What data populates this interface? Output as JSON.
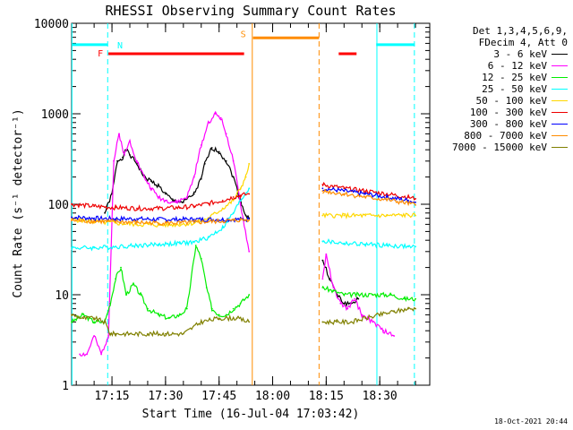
{
  "chart_data": {
    "type": "line",
    "title": "RHESSI Observing Summary Count Rates",
    "xlabel": "Start Time (16-Jul-04 17:03:42)",
    "ylabel": "Count Rate (s⁻¹ detector⁻¹)",
    "yscale": "log",
    "ylim": [
      1,
      10000
    ],
    "xlim_minutes": [
      1023.7,
      1124
    ],
    "x_unit": "minutes since 00:00 UT",
    "x_ticks": [
      {
        "v": 1035,
        "label": "17:15"
      },
      {
        "v": 1050,
        "label": "17:30"
      },
      {
        "v": 1065,
        "label": "17:45"
      },
      {
        "v": 1080,
        "label": "18:00"
      },
      {
        "v": 1095,
        "label": "18:15"
      },
      {
        "v": 1110,
        "label": "18:30"
      }
    ],
    "y_ticks": [
      {
        "v": 1,
        "label": "1"
      },
      {
        "v": 10,
        "label": "10"
      },
      {
        "v": 100,
        "label": "100"
      },
      {
        "v": 1000,
        "label": "1000"
      },
      {
        "v": 10000,
        "label": "10000"
      }
    ],
    "gaps": [
      [
        1073.6,
        1094
      ]
    ],
    "series": [
      {
        "name": "3 - 6 keV",
        "color": "#000000",
        "x": [
          1033,
          1035,
          1036.5,
          1038,
          1039,
          1040,
          1042,
          1044,
          1046,
          1048,
          1050,
          1052,
          1055,
          1058,
          1060,
          1061,
          1063,
          1065,
          1067,
          1069,
          1071,
          1072.5,
          1073.4,
          1094,
          1096,
          1098,
          1100,
          1102,
          1104
        ],
        "y": [
          80,
          130,
          300,
          330,
          400,
          350,
          280,
          200,
          180,
          160,
          130,
          110,
          105,
          130,
          190,
          280,
          420,
          380,
          300,
          200,
          110,
          75,
          70,
          24,
          15,
          10,
          8,
          8,
          9
        ]
      },
      {
        "name": "6 - 12 keV",
        "color": "#ff00ff",
        "x": [
          1026,
          1028,
          1030,
          1032,
          1034,
          1035.5,
          1037,
          1038.5,
          1040,
          1042,
          1044,
          1046,
          1048,
          1050,
          1053,
          1056,
          1058,
          1060,
          1062,
          1064,
          1065.5,
          1067,
          1069,
          1071,
          1073.4,
          1094,
          1095,
          1097,
          1099,
          1101,
          1103,
          1105,
          1108,
          1111,
          1114
        ],
        "y": [
          2.2,
          2.2,
          3.5,
          2.2,
          3.5,
          300,
          600,
          350,
          500,
          300,
          200,
          150,
          120,
          110,
          105,
          120,
          200,
          450,
          800,
          1000,
          900,
          600,
          300,
          100,
          30,
          15,
          28,
          12,
          8,
          7,
          9,
          6,
          5,
          4,
          3.5
        ]
      },
      {
        "name": "12 - 25 keV",
        "color": "#00ee00",
        "x": [
          1023.7,
          1027,
          1030,
          1033,
          1034.5,
          1036,
          1037.5,
          1039,
          1041,
          1043,
          1045,
          1048,
          1051,
          1054,
          1056,
          1058.5,
          1060,
          1061.5,
          1063,
          1065,
          1067,
          1069,
          1071,
          1073.4,
          1094,
          1097,
          1100,
          1104,
          1108,
          1113,
          1117,
          1120
        ],
        "y": [
          5,
          6,
          5,
          5,
          8,
          15,
          20,
          10,
          13,
          10,
          7,
          6,
          5.5,
          6,
          7,
          35,
          25,
          12,
          7,
          6,
          6,
          7,
          8,
          10,
          12,
          11,
          10,
          10,
          10,
          10,
          9,
          9
        ]
      },
      {
        "name": "25 - 50 keV",
        "color": "#00ffff",
        "x": [
          1023.7,
          1030,
          1036,
          1042,
          1048,
          1054,
          1058,
          1062,
          1066,
          1069,
          1071,
          1073.4,
          1094,
          1100,
          1106,
          1112,
          1118,
          1120
        ],
        "y": [
          33,
          33,
          34,
          35,
          36,
          37,
          38,
          43,
          55,
          80,
          110,
          150,
          39,
          37,
          36,
          35,
          34,
          34
        ]
      },
      {
        "name": "50 - 100 keV",
        "color": "#ffd700",
        "x": [
          1023.7,
          1030,
          1036,
          1042,
          1048,
          1054,
          1058,
          1062,
          1066,
          1069,
          1071,
          1072.5,
          1073.4,
          1094,
          1100,
          1106,
          1112,
          1118,
          1120
        ],
        "y": [
          68,
          64,
          62,
          60,
          59,
          60,
          62,
          70,
          90,
          110,
          150,
          200,
          280,
          75,
          75,
          75,
          75,
          76,
          75
        ]
      },
      {
        "name": "100 - 300 keV",
        "color": "#ee0000",
        "x": [
          1023.7,
          1030,
          1036,
          1042,
          1048,
          1054,
          1058,
          1062,
          1066,
          1069,
          1071,
          1073.4,
          1094,
          1100,
          1106,
          1112,
          1118,
          1120
        ],
        "y": [
          100,
          95,
          92,
          90,
          90,
          92,
          95,
          102,
          110,
          120,
          125,
          130,
          165,
          150,
          140,
          130,
          120,
          115
        ]
      },
      {
        "name": "300 - 800 keV",
        "color": "#0000ff",
        "x": [
          1023.7,
          1030,
          1036,
          1042,
          1048,
          1054,
          1058,
          1062,
          1066,
          1069,
          1071,
          1073.4,
          1094,
          1100,
          1106,
          1112,
          1118,
          1120
        ],
        "y": [
          72,
          70,
          69,
          69,
          68,
          68,
          68,
          68,
          68,
          68,
          68,
          68,
          150,
          140,
          130,
          120,
          110,
          105
        ]
      },
      {
        "name": "800 - 7000 keV",
        "color": "#ff8c00",
        "x": [
          1023.7,
          1030,
          1036,
          1042,
          1048,
          1054,
          1058,
          1062,
          1066,
          1069,
          1071,
          1073.4,
          1094,
          1100,
          1106,
          1112,
          1118,
          1120
        ],
        "y": [
          66,
          65,
          64,
          63,
          62,
          62,
          63,
          64,
          65,
          66,
          67,
          67,
          140,
          130,
          120,
          112,
          102,
          98
        ]
      },
      {
        "name": "7000 - 15000 keV",
        "color": "#808000",
        "x": [
          1023.7,
          1027,
          1030,
          1033,
          1034.5,
          1036,
          1040,
          1045,
          1050,
          1055,
          1060,
          1065,
          1070,
          1073.4,
          1094,
          1098,
          1102,
          1106,
          1110,
          1114,
          1118,
          1120
        ],
        "y": [
          6,
          5.5,
          5.5,
          5,
          3.7,
          3.7,
          3.7,
          3.7,
          3.7,
          3.7,
          5,
          5.5,
          5.5,
          5,
          5,
          5,
          5,
          5.5,
          6,
          6.5,
          7,
          7
        ]
      }
    ],
    "flag_bars": [
      {
        "label": "N",
        "color": "#00ffff",
        "segments": [
          [
            1023.7,
            1033.8
          ],
          [
            1109,
            1119.8
          ]
        ],
        "y": 5800
      },
      {
        "label": "F",
        "color": "#ff0000",
        "segments": [
          [
            1034,
            1072
          ],
          [
            1098.5,
            1103.5
          ]
        ],
        "y": 4600
      },
      {
        "label": "S",
        "color": "#ff8c00",
        "segments": [
          [
            1074.5,
            1093
          ]
        ],
        "y": 6900
      }
    ],
    "vlines": [
      {
        "x": 1023.8,
        "color": "#00ffff",
        "style": "solid"
      },
      {
        "x": 1033.8,
        "color": "#00ffff",
        "style": "dashed"
      },
      {
        "x": 1109.2,
        "color": "#00ffff",
        "style": "solid"
      },
      {
        "x": 1119.7,
        "color": "#00ffff",
        "style": "dashed"
      },
      {
        "x": 1074.3,
        "color": "#ff8c00",
        "style": "solid"
      },
      {
        "x": 1093.0,
        "color": "#ff8c00",
        "style": "dashed"
      }
    ]
  },
  "legend": {
    "header1": "Det 1,3,4,5,6,9,",
    "header2": "FDecim 4, Att 0"
  },
  "stamp": "18-Oct-2021 20:44"
}
